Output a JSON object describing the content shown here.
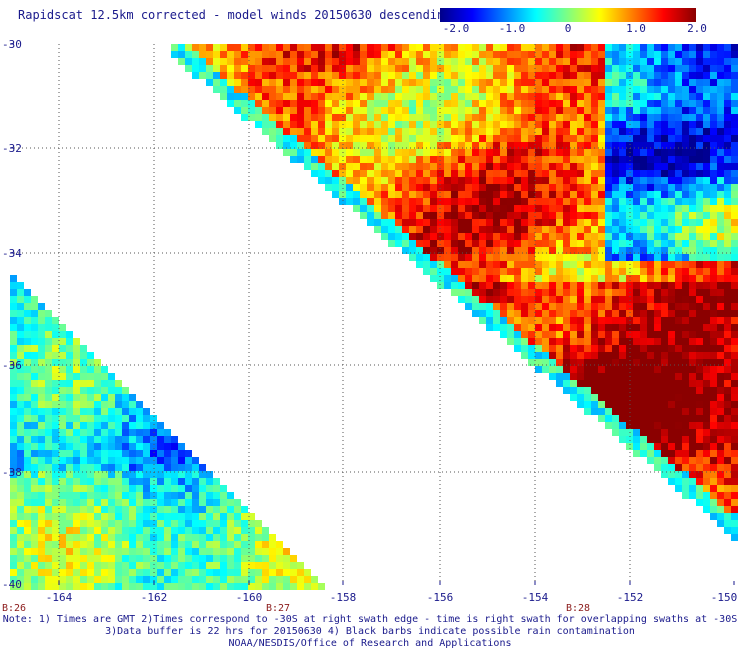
{
  "title": "Rapidscat 12.5km corrected - model winds 20150630 descending",
  "colorbar": {
    "labels": [
      "-2.0",
      "-1.0",
      "0",
      "1.0",
      "2.0"
    ],
    "colors": [
      "#00008b",
      "#0000ff",
      "#0080ff",
      "#00ffff",
      "#80ff80",
      "#ffff00",
      "#ff8000",
      "#ff0000",
      "#8b0000"
    ]
  },
  "map": {
    "lat_labels": [
      "-30",
      "-32",
      "-34",
      "-36",
      "-38",
      "-40"
    ],
    "lon_labels": [
      "-164",
      "-162",
      "-160",
      "-158",
      "-156",
      "-154",
      "-152",
      "-150"
    ],
    "lat_range": [
      -40,
      -30
    ],
    "lon_range": [
      -165,
      -150
    ],
    "grid": true,
    "swath_times": [
      {
        "label": "B:26",
        "lon": -165
      },
      {
        "label": "B:27",
        "lon": -160
      },
      {
        "label": "B:28",
        "lon": -153
      }
    ]
  },
  "notes": [
    "Note: 1) Times are GMT 2)Times correspond to -30S at right swath edge - time is right swath for overlapping swaths at -30S",
    "3)Data buffer is 22 hrs for 20150630 4) Black barbs indicate possible rain contamination",
    "NOAA/NESDIS/Office of Research and Applications"
  ]
}
